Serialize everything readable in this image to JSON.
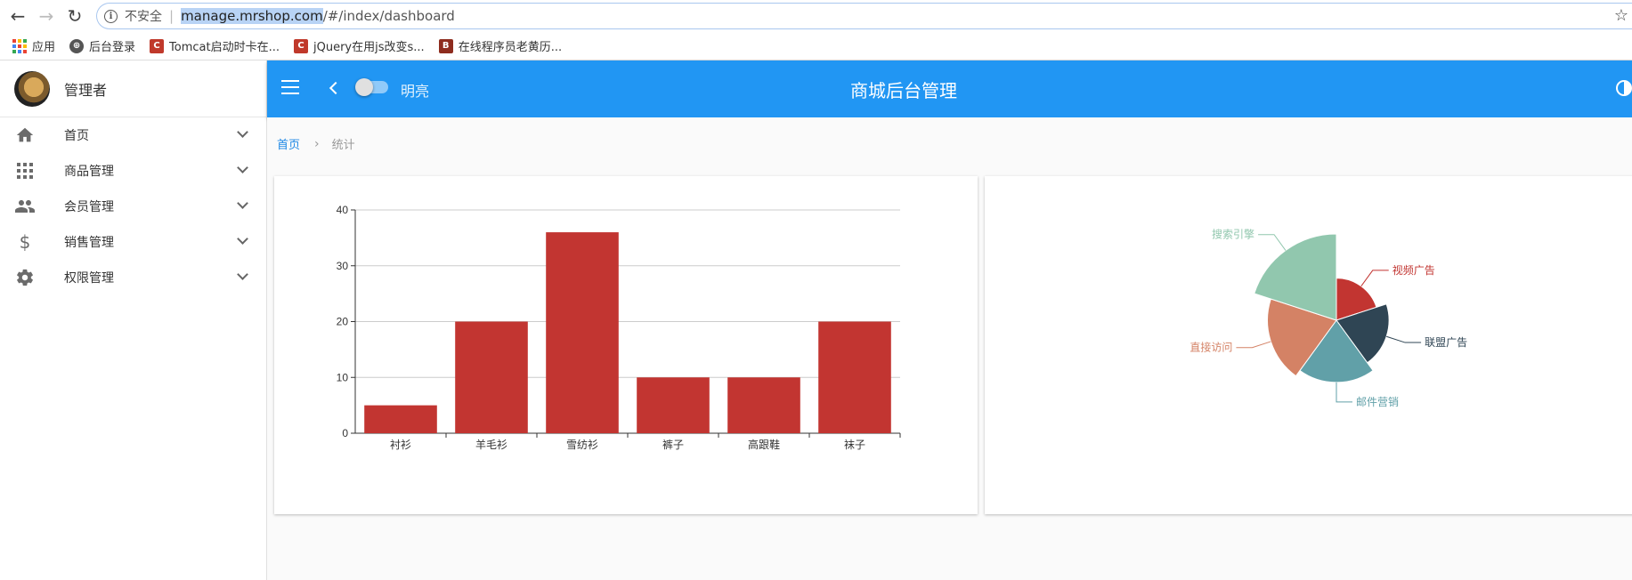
{
  "browser": {
    "security_label": "不安全",
    "url_host": "manage.mrshop.com",
    "url_path": "/#/index/dashboard",
    "bookmarks": [
      {
        "label": "应用",
        "icon": "apps-grid-icon"
      },
      {
        "label": "后台登录",
        "icon": "globe-icon"
      },
      {
        "label": "Tomcat启动时卡在...",
        "icon": "c-logo-icon"
      },
      {
        "label": "jQuery在用js改变s...",
        "icon": "c-logo-icon"
      },
      {
        "label": "在线程序员老黄历...",
        "icon": "b-logo-icon"
      }
    ]
  },
  "sidebar": {
    "user_name": "管理者",
    "items": [
      {
        "label": "首页",
        "icon": "home-icon"
      },
      {
        "label": "商品管理",
        "icon": "apps-icon"
      },
      {
        "label": "会员管理",
        "icon": "people-icon"
      },
      {
        "label": "销售管理",
        "icon": "dollar-icon"
      },
      {
        "label": "权限管理",
        "icon": "gear-icon"
      }
    ]
  },
  "topbar": {
    "toggle_label": "明亮",
    "title": "商城后台管理",
    "color": "#2196f3"
  },
  "breadcrumb": {
    "home": "首页",
    "current": "统计"
  },
  "chart_data": [
    {
      "type": "bar",
      "categories": [
        "衬衫",
        "羊毛衫",
        "雪纺衫",
        "裤子",
        "高跟鞋",
        "袜子"
      ],
      "values": [
        5,
        20,
        36,
        10,
        10,
        20
      ],
      "ylim": [
        0,
        40
      ],
      "yticks": [
        0,
        10,
        20,
        30,
        40
      ],
      "color": "#c23531",
      "grid": true
    },
    {
      "type": "pie",
      "rose": true,
      "slices": [
        {
          "name": "视频广告",
          "value": 235,
          "color": "#c23531"
        },
        {
          "name": "联盟广告",
          "value": 274,
          "color": "#2f4554"
        },
        {
          "name": "邮件营销",
          "value": 310,
          "color": "#61a0a8"
        },
        {
          "name": "直接访问",
          "value": 335,
          "color": "#d48265"
        },
        {
          "name": "搜索引擎",
          "value": 400,
          "color": "#91c7ae"
        }
      ]
    }
  ]
}
